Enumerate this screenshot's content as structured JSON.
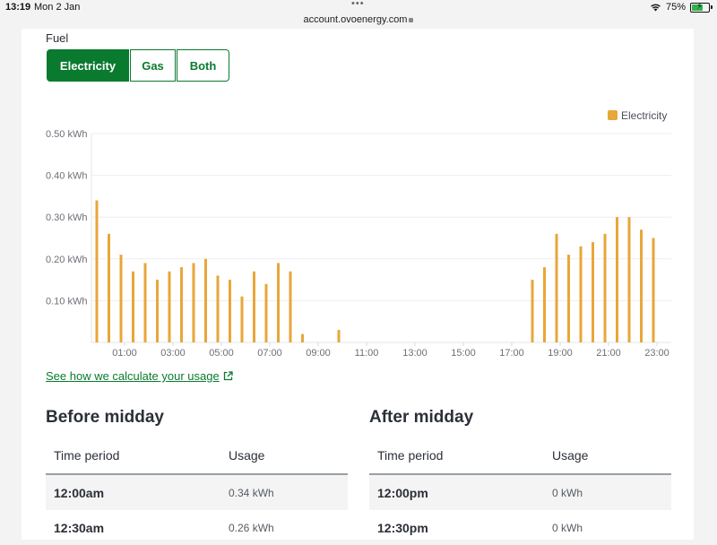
{
  "status_bar": {
    "time": "13:19",
    "date": "Mon 2 Jan",
    "url": "account.ovoenergy.com",
    "battery": "75%",
    "battery_level": 0.75
  },
  "fuel": {
    "label": "Fuel",
    "tabs": [
      {
        "label": "Electricity",
        "active": true
      },
      {
        "label": "Gas",
        "active": false
      },
      {
        "label": "Both",
        "active": false
      }
    ]
  },
  "colors": {
    "brand_green": "#0a7a2f",
    "bar_orange": "#e9a63a"
  },
  "chart_data": {
    "type": "bar",
    "legend": [
      "Electricity"
    ],
    "legend_position": "top-right",
    "ylim": [
      0,
      0.5
    ],
    "y_ticks": [
      "0.10 kWh",
      "0.20 kWh",
      "0.30 kWh",
      "0.40 kWh",
      "0.50 kWh"
    ],
    "x_ticks": [
      "01:00",
      "03:00",
      "05:00",
      "07:00",
      "09:00",
      "11:00",
      "13:00",
      "15:00",
      "17:00",
      "19:00",
      "21:00",
      "23:00"
    ],
    "categories": [
      "00:00",
      "00:30",
      "01:00",
      "01:30",
      "02:00",
      "02:30",
      "03:00",
      "03:30",
      "04:00",
      "04:30",
      "05:00",
      "05:30",
      "06:00",
      "06:30",
      "07:00",
      "07:30",
      "08:00",
      "08:30",
      "09:00",
      "09:30",
      "10:00",
      "10:30",
      "11:00",
      "11:30",
      "12:00",
      "12:30",
      "13:00",
      "13:30",
      "14:00",
      "14:30",
      "15:00",
      "15:30",
      "16:00",
      "16:30",
      "17:00",
      "17:30",
      "18:00",
      "18:30",
      "19:00",
      "19:30",
      "20:00",
      "20:30",
      "21:00",
      "21:30",
      "22:00",
      "22:30",
      "23:00",
      "23:30"
    ],
    "series": [
      {
        "name": "Electricity",
        "values": [
          0.34,
          0.26,
          0.21,
          0.17,
          0.19,
          0.15,
          0.17,
          0.18,
          0.19,
          0.2,
          0.16,
          0.15,
          0.11,
          0.17,
          0.14,
          0.19,
          0.17,
          0.02,
          0,
          0,
          0.03,
          0,
          0,
          0,
          0,
          0,
          0,
          0,
          0,
          0,
          0,
          0,
          0,
          0,
          0,
          0,
          0.15,
          0.18,
          0.26,
          0.21,
          0.23,
          0.24,
          0.26,
          0.3,
          0.3,
          0.27,
          0.25,
          0
        ]
      }
    ],
    "grid": true
  },
  "calc_link": "See how we calculate your usage",
  "before_midday": {
    "title": "Before midday",
    "col_time": "Time period",
    "col_usage": "Usage",
    "rows": [
      {
        "time": "12:00am",
        "usage": "0.34 kWh"
      },
      {
        "time": "12:30am",
        "usage": "0.26 kWh"
      }
    ]
  },
  "after_midday": {
    "title": "After midday",
    "col_time": "Time period",
    "col_usage": "Usage",
    "rows": [
      {
        "time": "12:00pm",
        "usage": "0 kWh"
      },
      {
        "time": "12:30pm",
        "usage": "0 kWh"
      }
    ]
  }
}
